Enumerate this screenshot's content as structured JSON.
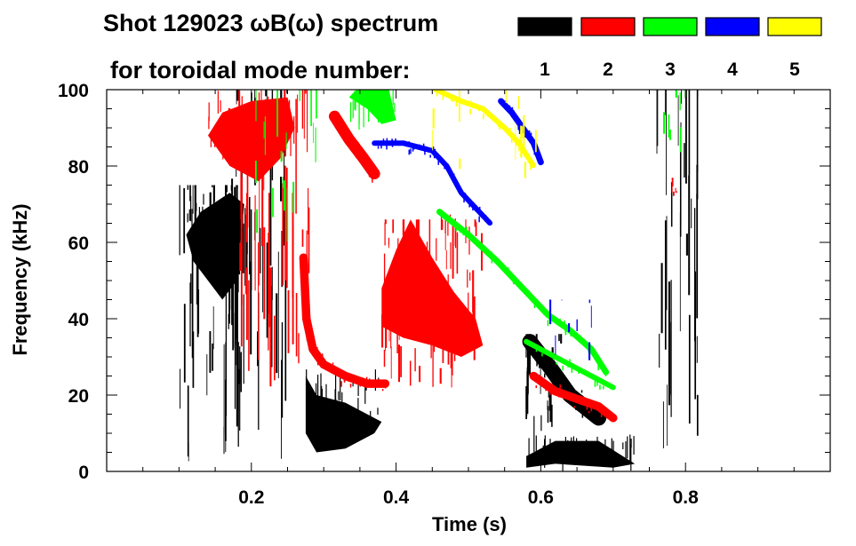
{
  "chart_data": {
    "type": "heatmap",
    "title": "Shot 129023 ωB(ω) spectrum",
    "legend_caption": "for toroidal mode number:",
    "xlabel": "Time (s)",
    "ylabel": "Frequency (kHz)",
    "xlim": [
      0.0,
      1.0
    ],
    "ylim": [
      0,
      100
    ],
    "xticks": [
      0.2,
      0.4,
      0.6,
      0.8
    ],
    "xtick_labels": [
      "0.2",
      "0.4",
      "0.6",
      "0.8"
    ],
    "yticks": [
      0,
      20,
      40,
      60,
      80,
      100
    ],
    "ytick_labels": [
      "0",
      "20",
      "40",
      "60",
      "80",
      "100"
    ],
    "legend_placement": "top-right",
    "modes": [
      {
        "n": "1",
        "color": "#000000"
      },
      {
        "n": "2",
        "color": "#ff0000"
      },
      {
        "n": "3",
        "color": "#00ff00"
      },
      {
        "n": "4",
        "color": "#0000ff"
      },
      {
        "n": "5",
        "color": "#ffff00"
      }
    ],
    "features": [
      {
        "mode": "1",
        "kind": "blob",
        "points": [
          [
            0.11,
            62
          ],
          [
            0.12,
            55
          ],
          [
            0.16,
            45
          ],
          [
            0.18,
            50
          ],
          [
            0.19,
            70
          ],
          [
            0.17,
            73
          ],
          [
            0.13,
            68
          ]
        ]
      },
      {
        "mode": "1",
        "kind": "streaks",
        "t_range": [
          0.1,
          0.2
        ],
        "f_range": [
          2,
          75
        ],
        "count": 60
      },
      {
        "mode": "1",
        "kind": "streaks",
        "t_range": [
          0.17,
          0.25
        ],
        "f_range": [
          1,
          100
        ],
        "count": 40
      },
      {
        "mode": "1",
        "kind": "blob",
        "points": [
          [
            0.275,
            25
          ],
          [
            0.29,
            20
          ],
          [
            0.33,
            18
          ],
          [
            0.36,
            15
          ],
          [
            0.38,
            13
          ],
          [
            0.37,
            10
          ],
          [
            0.33,
            6
          ],
          [
            0.29,
            5
          ],
          [
            0.275,
            10
          ]
        ]
      },
      {
        "mode": "1",
        "kind": "blob",
        "points": [
          [
            0.58,
            4
          ],
          [
            0.62,
            8
          ],
          [
            0.68,
            8
          ],
          [
            0.73,
            2
          ],
          [
            0.7,
            1
          ],
          [
            0.62,
            2
          ],
          [
            0.58,
            1
          ]
        ]
      },
      {
        "mode": "1",
        "kind": "band",
        "points": [
          [
            0.585,
            34
          ],
          [
            0.61,
            28
          ],
          [
            0.64,
            20
          ],
          [
            0.68,
            14
          ]
        ],
        "width": 4.0
      },
      {
        "mode": "1",
        "kind": "streaks",
        "t_range": [
          0.575,
          0.63
        ],
        "f_range": [
          4,
          36
        ],
        "count": 25
      },
      {
        "mode": "1",
        "kind": "streaks",
        "t_range": [
          0.76,
          0.82
        ],
        "f_range": [
          5,
          100
        ],
        "count": 35
      },
      {
        "mode": "2",
        "kind": "blob",
        "points": [
          [
            0.14,
            88
          ],
          [
            0.17,
            80
          ],
          [
            0.21,
            76
          ],
          [
            0.24,
            82
          ],
          [
            0.26,
            90
          ],
          [
            0.25,
            98
          ],
          [
            0.2,
            97
          ],
          [
            0.16,
            94
          ]
        ]
      },
      {
        "mode": "2",
        "kind": "streaks",
        "t_range": [
          0.18,
          0.28
        ],
        "f_range": [
          20,
          100
        ],
        "count": 45
      },
      {
        "mode": "2",
        "kind": "band",
        "points": [
          [
            0.272,
            56
          ],
          [
            0.276,
            40
          ],
          [
            0.285,
            32
          ],
          [
            0.3,
            28
          ],
          [
            0.33,
            25
          ],
          [
            0.36,
            23
          ],
          [
            0.385,
            23
          ]
        ],
        "width": 2.2
      },
      {
        "mode": "2",
        "kind": "band",
        "points": [
          [
            0.315,
            93
          ],
          [
            0.335,
            87
          ],
          [
            0.355,
            82
          ],
          [
            0.37,
            78
          ]
        ],
        "width": 3.0
      },
      {
        "mode": "2",
        "kind": "blob",
        "points": [
          [
            0.38,
            48
          ],
          [
            0.4,
            58
          ],
          [
            0.42,
            66
          ],
          [
            0.45,
            56
          ],
          [
            0.48,
            47
          ],
          [
            0.51,
            40
          ],
          [
            0.52,
            33
          ],
          [
            0.49,
            30
          ],
          [
            0.45,
            33
          ],
          [
            0.41,
            35
          ],
          [
            0.38,
            38
          ]
        ]
      },
      {
        "mode": "2",
        "kind": "streaks",
        "t_range": [
          0.38,
          0.52
        ],
        "f_range": [
          22,
          66
        ],
        "count": 70
      },
      {
        "mode": "2",
        "kind": "band",
        "points": [
          [
            0.59,
            25
          ],
          [
            0.62,
            21
          ],
          [
            0.65,
            19
          ],
          [
            0.68,
            17
          ],
          [
            0.7,
            14
          ]
        ],
        "width": 2.2
      },
      {
        "mode": "2",
        "kind": "streaks",
        "t_range": [
          0.78,
          0.79
        ],
        "f_range": [
          70,
          78
        ],
        "count": 5
      },
      {
        "mode": "3",
        "kind": "blob",
        "points": [
          [
            0.335,
            98
          ],
          [
            0.36,
            95
          ],
          [
            0.38,
            91
          ],
          [
            0.4,
            92
          ],
          [
            0.39,
            100
          ],
          [
            0.345,
            100
          ]
        ]
      },
      {
        "mode": "3",
        "kind": "band",
        "points": [
          [
            0.46,
            68
          ],
          [
            0.5,
            62
          ],
          [
            0.54,
            55
          ],
          [
            0.58,
            47
          ],
          [
            0.61,
            41
          ],
          [
            0.64,
            37
          ],
          [
            0.67,
            32
          ],
          [
            0.69,
            26
          ]
        ],
        "width": 1.6
      },
      {
        "mode": "3",
        "kind": "band",
        "points": [
          [
            0.58,
            34
          ],
          [
            0.62,
            30
          ],
          [
            0.66,
            26
          ],
          [
            0.7,
            22
          ]
        ],
        "width": 1.4
      },
      {
        "mode": "3",
        "kind": "streaks",
        "t_range": [
          0.2,
          0.3
        ],
        "f_range": [
          60,
          100
        ],
        "count": 18
      },
      {
        "mode": "3",
        "kind": "streaks",
        "t_range": [
          0.77,
          0.8
        ],
        "f_range": [
          82,
          100
        ],
        "count": 8
      },
      {
        "mode": "4",
        "kind": "band",
        "points": [
          [
            0.37,
            86
          ],
          [
            0.39,
            86
          ],
          [
            0.41,
            86
          ],
          [
            0.43,
            85
          ],
          [
            0.45,
            84
          ],
          [
            0.47,
            80
          ],
          [
            0.49,
            73
          ],
          [
            0.51,
            69
          ],
          [
            0.53,
            65
          ]
        ],
        "width": 1.4
      },
      {
        "mode": "4",
        "kind": "band",
        "points": [
          [
            0.545,
            97
          ],
          [
            0.56,
            94
          ],
          [
            0.575,
            90
          ],
          [
            0.59,
            86
          ],
          [
            0.6,
            81
          ]
        ],
        "width": 1.6
      },
      {
        "mode": "4",
        "kind": "streaks",
        "t_range": [
          0.6,
          0.69
        ],
        "f_range": [
          25,
          45
        ],
        "count": 8
      },
      {
        "mode": "5",
        "kind": "band",
        "points": [
          [
            0.455,
            100
          ],
          [
            0.49,
            97
          ],
          [
            0.52,
            95
          ],
          [
            0.55,
            90
          ],
          [
            0.57,
            86
          ],
          [
            0.59,
            80
          ]
        ],
        "width": 1.4
      },
      {
        "mode": "5",
        "kind": "streaks",
        "t_range": [
          0.44,
          0.6
        ],
        "f_range": [
          75,
          100
        ],
        "count": 12
      }
    ]
  }
}
